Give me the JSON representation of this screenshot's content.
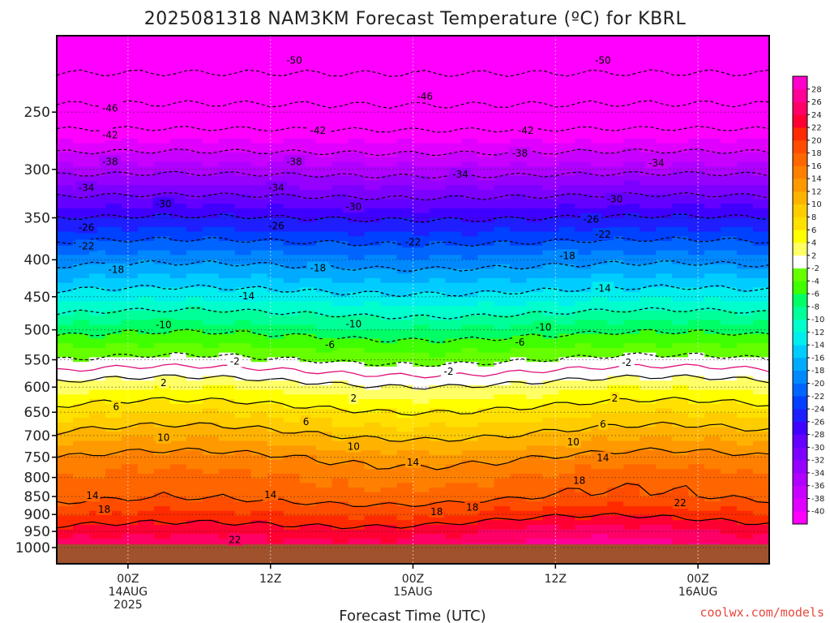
{
  "chart_data": {
    "type": "heatmap",
    "title": "2025081318 NAM3KM Forecast Temperature (ºC) for KBRL",
    "xlabel": "Forecast Time (UTC)",
    "ylabel": "",
    "y_scale": "log-pressure",
    "ylim": [
      1000,
      200
    ],
    "y_ticks": [
      250,
      300,
      350,
      400,
      450,
      500,
      550,
      600,
      650,
      700,
      750,
      800,
      850,
      900,
      950,
      1000
    ],
    "x_range_hours": [
      0,
      60
    ],
    "x_ticks": [
      {
        "hour": 6,
        "line1": "00Z",
        "line2": "14AUG",
        "line3": "2025"
      },
      {
        "hour": 18,
        "line1": "12Z",
        "line2": "",
        "line3": ""
      },
      {
        "hour": 30,
        "line1": "00Z",
        "line2": "15AUG",
        "line3": ""
      },
      {
        "hour": 42,
        "line1": "12Z",
        "line2": "",
        "line3": ""
      },
      {
        "hour": 54,
        "line1": "00Z",
        "line2": "16AUG",
        "line3": ""
      }
    ],
    "grid": true,
    "ground_level_hPa": 990,
    "colorbar": {
      "levels": [
        -40,
        -38,
        -36,
        -34,
        -32,
        -30,
        -28,
        -26,
        -24,
        -22,
        -20,
        -18,
        -16,
        -14,
        -12,
        -10,
        -8,
        -6,
        -4,
        -2,
        2,
        4,
        6,
        8,
        10,
        12,
        14,
        16,
        18,
        20,
        22,
        24,
        26,
        28
      ],
      "colors": [
        "#ff00ff",
        "#e000ff",
        "#c800ff",
        "#b000ff",
        "#9600ff",
        "#7d00ff",
        "#6400ff",
        "#4000ff",
        "#1e1eff",
        "#0040ff",
        "#0064ff",
        "#0088ff",
        "#00aaff",
        "#00ccff",
        "#00eeee",
        "#00ffcc",
        "#00ff99",
        "#00ff66",
        "#40ff00",
        "#66ff00",
        "#ffffff",
        "#ffff66",
        "#ffff00",
        "#ffe000",
        "#ffcc00",
        "#ffb300",
        "#ff9900",
        "#ff8000",
        "#ff6600",
        "#ff4d00",
        "#ff2a00",
        "#ff0033",
        "#ff0066",
        "#ff0099",
        "#ff00cc"
      ]
    },
    "temperature_profile": [
      {
        "p": 1000,
        "t": 25
      },
      {
        "p": 950,
        "t": 23
      },
      {
        "p": 900,
        "t": 20
      },
      {
        "p": 850,
        "t": 17
      },
      {
        "p": 800,
        "t": 16
      },
      {
        "p": 750,
        "t": 14
      },
      {
        "p": 700,
        "t": 10.5
      },
      {
        "p": 650,
        "t": 7
      },
      {
        "p": 600,
        "t": 3
      },
      {
        "p": 550,
        "t": -2
      },
      {
        "p": 500,
        "t": -7
      },
      {
        "p": 450,
        "t": -13
      },
      {
        "p": 400,
        "t": -19
      },
      {
        "p": 350,
        "t": -26
      },
      {
        "p": 300,
        "t": -35
      },
      {
        "p": 250,
        "t": -45
      },
      {
        "p": 200,
        "t": -54
      }
    ],
    "contour_labels": [
      {
        "text": "-50",
        "hour": 20,
        "p": 212
      },
      {
        "text": "-50",
        "hour": 46,
        "p": 212
      },
      {
        "text": "-46",
        "hour": 4.5,
        "p": 247
      },
      {
        "text": "-46",
        "hour": 31,
        "p": 238
      },
      {
        "text": "-42",
        "hour": 4.5,
        "p": 269
      },
      {
        "text": "-42",
        "hour": 22,
        "p": 265
      },
      {
        "text": "-42",
        "hour": 39.5,
        "p": 265
      },
      {
        "text": "-38",
        "hour": 4.5,
        "p": 293
      },
      {
        "text": "-38",
        "hour": 20,
        "p": 293
      },
      {
        "text": "-38",
        "hour": 39,
        "p": 285
      },
      {
        "text": "-34",
        "hour": 2.5,
        "p": 318
      },
      {
        "text": "-34",
        "hour": 18.5,
        "p": 318
      },
      {
        "text": "-34",
        "hour": 34,
        "p": 305
      },
      {
        "text": "-34",
        "hour": 50.5,
        "p": 294
      },
      {
        "text": "-30",
        "hour": 9,
        "p": 335
      },
      {
        "text": "-30",
        "hour": 25,
        "p": 338
      },
      {
        "text": "-30",
        "hour": 47,
        "p": 330
      },
      {
        "text": "-26",
        "hour": 2.5,
        "p": 361
      },
      {
        "text": "-26",
        "hour": 18.5,
        "p": 359
      },
      {
        "text": "-26",
        "hour": 45,
        "p": 352
      },
      {
        "text": "-22",
        "hour": 2.5,
        "p": 383
      },
      {
        "text": "-22",
        "hour": 30,
        "p": 378
      },
      {
        "text": "-22",
        "hour": 46,
        "p": 369
      },
      {
        "text": "-18",
        "hour": 5,
        "p": 413
      },
      {
        "text": "-18",
        "hour": 22,
        "p": 411
      },
      {
        "text": "-18",
        "hour": 43,
        "p": 395
      },
      {
        "text": "-14",
        "hour": 16,
        "p": 449
      },
      {
        "text": "-14",
        "hour": 46,
        "p": 438
      },
      {
        "text": "-10",
        "hour": 9,
        "p": 492
      },
      {
        "text": "-10",
        "hour": 25,
        "p": 491
      },
      {
        "text": "-10",
        "hour": 41,
        "p": 496
      },
      {
        "text": "-6",
        "hour": 23,
        "p": 524
      },
      {
        "text": "-6",
        "hour": 39,
        "p": 520
      },
      {
        "text": "-2",
        "hour": 15,
        "p": 553
      },
      {
        "text": "-2",
        "hour": 33,
        "p": 571
      },
      {
        "text": "-2",
        "hour": 48,
        "p": 555
      },
      {
        "text": "2",
        "hour": 9,
        "p": 592
      },
      {
        "text": "2",
        "hour": 25,
        "p": 622
      },
      {
        "text": "2",
        "hour": 47,
        "p": 622
      },
      {
        "text": "6",
        "hour": 5,
        "p": 639
      },
      {
        "text": "6",
        "hour": 21,
        "p": 670
      },
      {
        "text": "6",
        "hour": 46,
        "p": 675
      },
      {
        "text": "10",
        "hour": 9,
        "p": 705
      },
      {
        "text": "10",
        "hour": 25,
        "p": 725
      },
      {
        "text": "10",
        "hour": 43.5,
        "p": 715
      },
      {
        "text": "14",
        "hour": 30,
        "p": 762
      },
      {
        "text": "14",
        "hour": 46,
        "p": 752
      },
      {
        "text": "14",
        "hour": 3,
        "p": 848
      },
      {
        "text": "14",
        "hour": 18,
        "p": 845
      },
      {
        "text": "18",
        "hour": 44,
        "p": 808
      },
      {
        "text": "18",
        "hour": 4,
        "p": 886
      },
      {
        "text": "18",
        "hour": 32,
        "p": 893
      },
      {
        "text": "18",
        "hour": 35,
        "p": 880
      },
      {
        "text": "22",
        "hour": 52.5,
        "p": 868
      },
      {
        "text": "22",
        "hour": 15,
        "p": 976
      }
    ]
  },
  "credit": "coolwx.com/models"
}
